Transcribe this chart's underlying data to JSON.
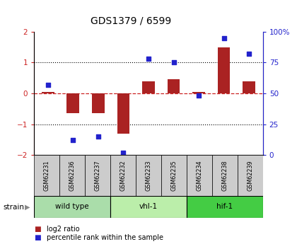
{
  "title": "GDS1379 / 6599",
  "samples": [
    "GSM62231",
    "GSM62236",
    "GSM62237",
    "GSM62232",
    "GSM62233",
    "GSM62235",
    "GSM62234",
    "GSM62238",
    "GSM62239"
  ],
  "log2_ratio": [
    0.05,
    -0.65,
    -0.65,
    -1.3,
    0.4,
    0.45,
    0.05,
    1.5,
    0.4
  ],
  "percentile_rank": [
    57,
    12,
    15,
    2,
    78,
    75,
    48,
    95,
    82
  ],
  "groups": [
    {
      "label": "wild type",
      "start": 0,
      "end": 3,
      "color": "#aaddaa"
    },
    {
      "label": "vhl-1",
      "start": 3,
      "end": 6,
      "color": "#bbeeaa"
    },
    {
      "label": "hif-1",
      "start": 6,
      "end": 9,
      "color": "#44cc44"
    }
  ],
  "ylim_left": [
    -2,
    2
  ],
  "ylim_right": [
    0,
    100
  ],
  "yticks_left": [
    -2,
    -1,
    0,
    1,
    2
  ],
  "yticks_right": [
    0,
    25,
    50,
    75,
    100
  ],
  "yticklabels_right": [
    "0",
    "25",
    "50",
    "75",
    "100%"
  ],
  "bar_color": "#aa2222",
  "dot_color": "#2222cc",
  "zero_line_color": "#cc2222",
  "grid_color": "#000000",
  "plot_bg": "#ffffff",
  "sample_bg": "#cccccc",
  "legend_bar_label": "log2 ratio",
  "legend_dot_label": "percentile rank within the sample",
  "strain_label": "strain",
  "left_tick_color": "#cc2222",
  "right_tick_color": "#2222cc",
  "bar_width": 0.5
}
